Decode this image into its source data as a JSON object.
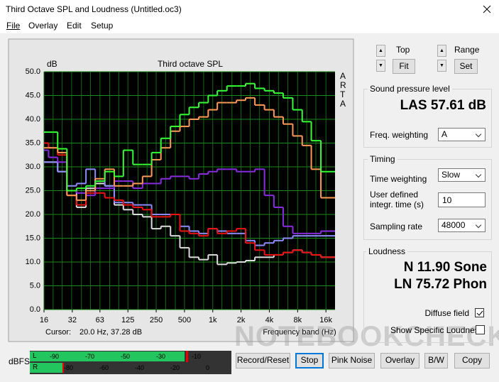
{
  "window": {
    "title": "Third Octave SPL and Loudness (Untitled.oc3)"
  },
  "menu": [
    "File",
    "Overlay",
    "Edit",
    "Setup"
  ],
  "chart_data": {
    "type": "line",
    "step": true,
    "title": "Third octave SPL",
    "y_label": "dB",
    "x_label": "Frequency band (Hz)",
    "log_x": true,
    "grid": true,
    "xlim": [
      16,
      20000
    ],
    "xticks": [
      16,
      32,
      63,
      125,
      250,
      500,
      {
        "value": 1000,
        "label": "1k"
      },
      {
        "value": 2000,
        "label": "2k"
      },
      {
        "value": 4000,
        "label": "4k"
      },
      {
        "value": 8000,
        "label": "8k"
      },
      {
        "value": 16000,
        "label": "16k"
      }
    ],
    "ylim": [
      0,
      50
    ],
    "yticks": [
      {
        "value": 0,
        "label": "0.0"
      },
      {
        "value": 5,
        "label": "5.0"
      },
      {
        "value": 10,
        "label": "10.0"
      },
      {
        "value": 15,
        "label": "15.0"
      },
      {
        "value": 20,
        "label": "20.0"
      },
      {
        "value": 25,
        "label": "25.0"
      },
      {
        "value": 30,
        "label": "30.0"
      },
      {
        "value": 35,
        "label": "35.0"
      },
      {
        "value": 40,
        "label": "40.0"
      },
      {
        "value": 45,
        "label": "45.0"
      },
      {
        "value": 50,
        "label": "50.0"
      }
    ],
    "x": [
      16,
      20,
      25,
      31.5,
      40,
      50,
      63,
      80,
      100,
      125,
      160,
      200,
      250,
      315,
      400,
      500,
      630,
      800,
      1000,
      1250,
      1600,
      2000,
      2500,
      3150,
      4000,
      5000,
      6300,
      8000,
      10000,
      12500,
      16000
    ],
    "series": [
      {
        "color": "#dcdcdc",
        "values": [
          31,
          31,
          29,
          25,
          21.5,
          25.5,
          26.5,
          26,
          22,
          21,
          20,
          19.5,
          17,
          17.5,
          15.5,
          13,
          11,
          10.5,
          11.5,
          9.5,
          9.8,
          10,
          10.3,
          11,
          11,
          11.5,
          12,
          12.5,
          12,
          11.5,
          11
        ]
      },
      {
        "color": "#8c8cff",
        "values": [
          31,
          31,
          29,
          26,
          26.5,
          29.5,
          27,
          26,
          22.5,
          22.5,
          22,
          22,
          20,
          20,
          20,
          17.5,
          16.5,
          16,
          17,
          16.5,
          16,
          16,
          14.5,
          13.5,
          14,
          14.5,
          15,
          15.5,
          15.5,
          15.5,
          15.5
        ]
      },
      {
        "color": "#ee1111",
        "values": [
          35,
          34,
          32.5,
          24,
          22,
          24.5,
          24.5,
          23.5,
          23,
          22,
          21.5,
          21,
          19.5,
          19.5,
          20,
          16.5,
          16,
          15.5,
          17,
          16,
          16.5,
          17,
          14,
          12.5,
          11.5,
          11.5,
          12,
          12.5,
          12,
          11.5,
          11
        ]
      },
      {
        "color": "#8a2be2",
        "values": [
          33.5,
          32,
          31,
          25,
          24.5,
          24,
          25.5,
          25.5,
          27,
          27,
          25.5,
          26.5,
          26.5,
          27.5,
          28,
          28,
          27.5,
          28.5,
          29,
          29.5,
          29.5,
          29,
          29,
          29.5,
          24,
          21.5,
          17.5,
          16,
          16,
          16,
          16.5
        ]
      },
      {
        "color": "#ff9955",
        "values": [
          34,
          34,
          33,
          24,
          23,
          25,
          27.5,
          29.5,
          26,
          26,
          26.5,
          28,
          31.5,
          34,
          37.5,
          38.5,
          40,
          40.5,
          42,
          43.5,
          43.5,
          44,
          44.5,
          43,
          42,
          40.5,
          39,
          36.5,
          34.5,
          29.5,
          23.5
        ]
      },
      {
        "color": "#33ff33",
        "values": [
          37.3,
          37.3,
          33.8,
          25,
          25.5,
          26,
          27,
          29,
          28,
          33.5,
          30.5,
          30.5,
          33,
          36,
          38.5,
          41,
          42.5,
          43.5,
          45,
          46,
          47,
          47,
          47.5,
          46.5,
          46,
          45.5,
          44.5,
          42,
          39.5,
          35.5,
          29
        ]
      }
    ]
  },
  "cursor": {
    "label": "Cursor:",
    "value": "20.0 Hz, 37.28 dB"
  },
  "brand": "ARTA",
  "watermark": "NOTEBOOKCHECK",
  "controls": {
    "top": "Top",
    "fit": "Fit",
    "range": "Range",
    "set": "Set"
  },
  "spl": {
    "title": "Sound pressure level",
    "reading": "LAS 57.61 dB",
    "weighting_label": "Freq. weighting",
    "weighting_value": "A"
  },
  "timing": {
    "title": "Timing",
    "time_weighting_label": "Time weighting",
    "time_weighting_value": "Slow",
    "integr_label": "User defined integr. time (s)",
    "integr_value": "10",
    "sampling_label": "Sampling rate",
    "sampling_value": "48000"
  },
  "loudness": {
    "title": "Loudness",
    "n": "N 11.90 Sone",
    "ln": "LN 75.72 Phon",
    "diffuse_label": "Diffuse field",
    "specific_label": "Show Specific Loudness"
  },
  "meter": {
    "unit": "dBFS",
    "channels": [
      "L",
      "R"
    ],
    "top_scale": [
      "-90",
      "-70",
      "-50",
      "-30",
      "-10"
    ],
    "bottom_scale": [
      "-80",
      "-60",
      "-40",
      "-20",
      "0"
    ]
  },
  "buttons": [
    "Record/Reset",
    "Stop",
    "Pink Noise",
    "Overlay",
    "B/W",
    "Copy"
  ]
}
